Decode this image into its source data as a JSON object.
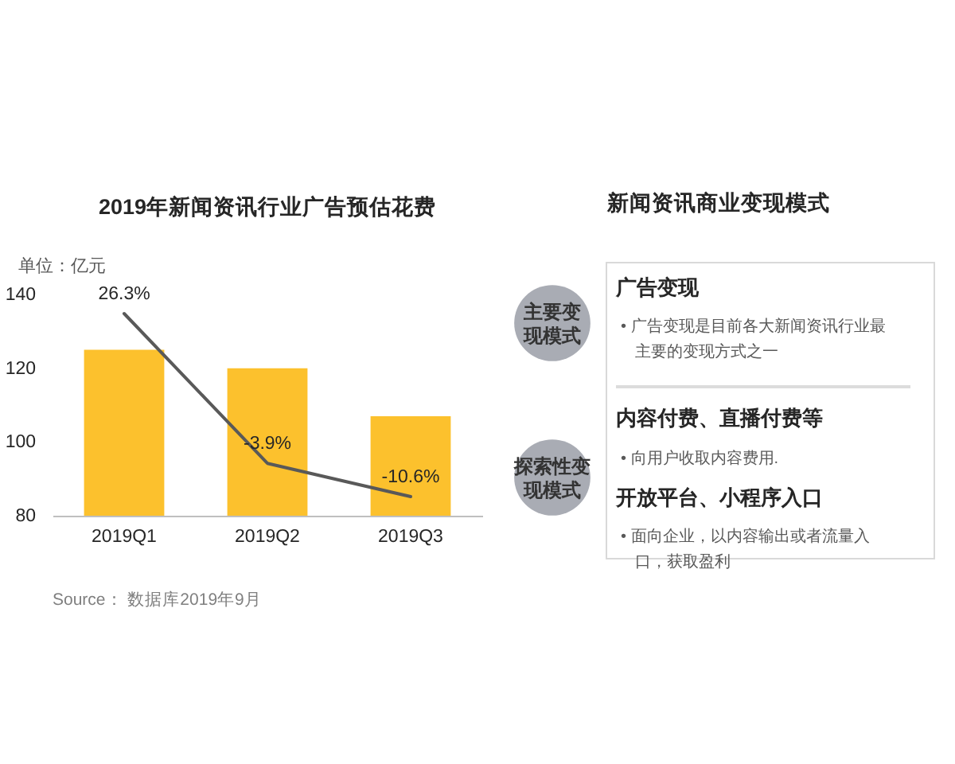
{
  "chart_data": [
    {
      "type": "bar",
      "title": "2019年新闻资讯行业广告预估花费",
      "ylabel": "单位：亿元",
      "categories": [
        "2019Q1",
        "2019Q2",
        "2019Q3"
      ],
      "series": [
        {
          "type": "bar",
          "color": "#fcc12d",
          "values": [
            125,
            120,
            107
          ]
        },
        {
          "type": "line",
          "axis": "y2",
          "color": "#595959",
          "values": [
            26.3,
            -3.9,
            -10.6
          ],
          "value_labels": [
            "26.3%",
            "-3.9%",
            "-10.6%"
          ]
        }
      ],
      "ylim": [
        80,
        140
      ],
      "yticks": [
        80,
        100,
        120,
        140
      ],
      "tick_labels": "xy",
      "annotations": [
        "Source： 数据库2019年9月"
      ]
    },
    {
      "type": "other",
      "title": "新闻资讯商业变现模式",
      "annotations": [
        "主要变现模式",
        "广告变现",
        "• 广告变现是目前各大新闻资讯行业最主要的变现方式之一",
        "内容付费、直播付费等",
        "• 向用户收取内容费用.",
        "探索性变现模式",
        "开放平台、小程序入口",
        "• 面向企业，以内容输出或者流量入口，获取盈利"
      ]
    }
  ]
}
